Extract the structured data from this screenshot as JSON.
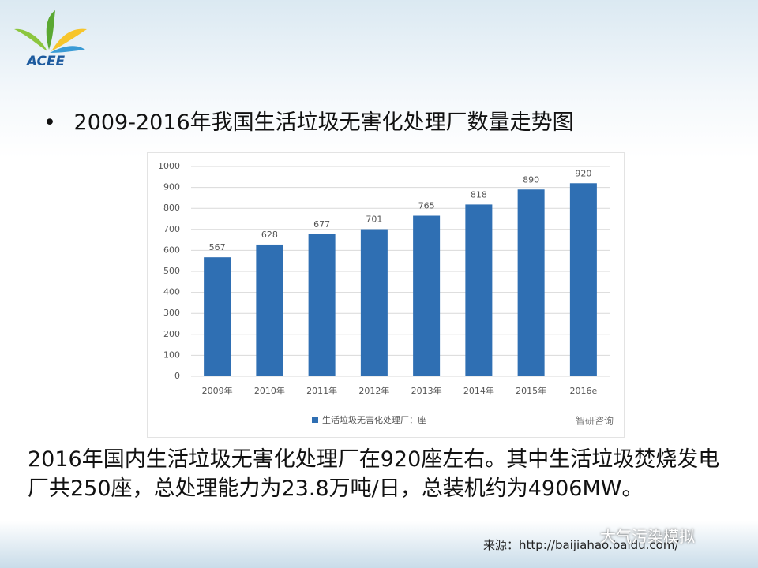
{
  "slide": {
    "logo": "ACEE",
    "heading": "2009-2016年我国生活垃圾无害化处理厂数量走势图",
    "body": "2016年国内生活垃圾无害化处理厂在920座左右。其中生活垃圾焚烧发电厂共250座，总处理能力为23.8万吨/日，总装机约为4906MW。",
    "source": "来源：http://baijiahao.baidu.com/",
    "watermark": "大气污染模拟"
  },
  "chart_data": {
    "type": "bar",
    "categories": [
      "2009年",
      "2010年",
      "2011年",
      "2012年",
      "2013年",
      "2014年",
      "2015年",
      "2016e"
    ],
    "series": [
      {
        "name": "生活垃圾无害化处理厂：座",
        "color": "#2f6fb3",
        "values": [
          567,
          628,
          677,
          701,
          765,
          818,
          890,
          920
        ]
      }
    ],
    "ylim": [
      0,
      1000
    ],
    "yticks": [
      0,
      100,
      200,
      300,
      400,
      500,
      600,
      700,
      800,
      900,
      1000
    ],
    "grid": true,
    "legend": "bottom",
    "watermark": "智研咨询"
  }
}
